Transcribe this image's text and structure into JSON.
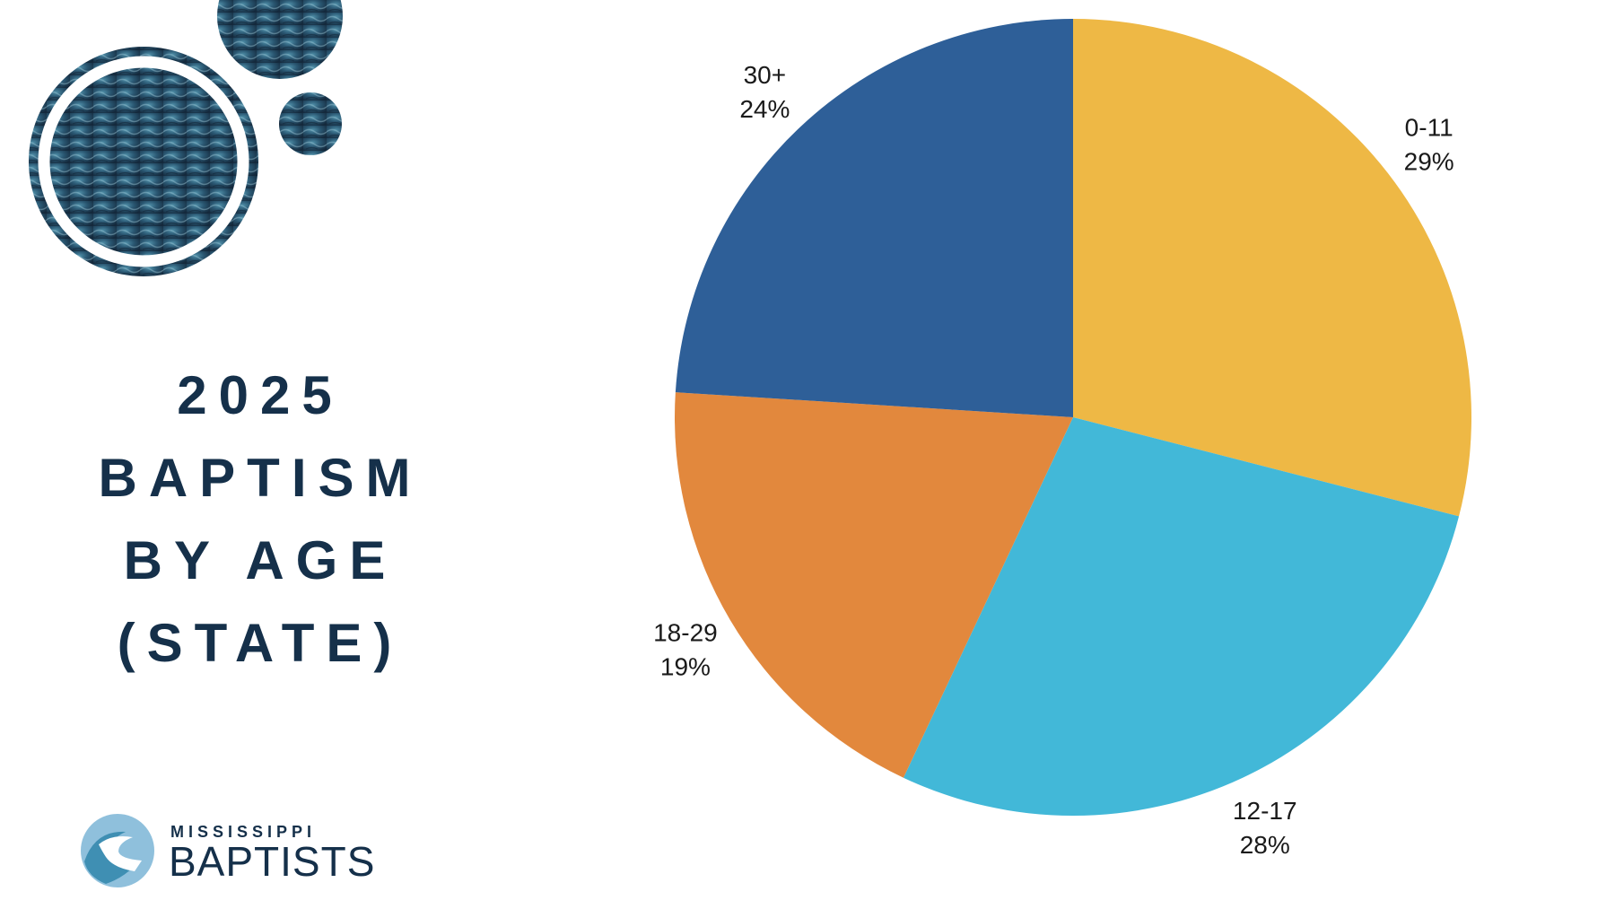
{
  "title_lines": [
    "2025",
    "BAPTISM",
    "BY AGE",
    "(STATE)"
  ],
  "logo": {
    "small_text": "MISSISSIPPI",
    "big_text": "BAPTISTS"
  },
  "colors": {
    "title": "#15304a",
    "slice_0_11": "#eeb845",
    "slice_12_17": "#42b8d8",
    "slice_18_29": "#e2883d",
    "slice_30_plus": "#2e5f98",
    "water_dark": "#1c3a52",
    "water_light": "#4f8fa8"
  },
  "chart_data": {
    "type": "pie",
    "title": "2025 BAPTISM BY AGE (STATE)",
    "slices": [
      {
        "name": "0-11",
        "value": 29,
        "label": "29%",
        "color": "#eeb845"
      },
      {
        "name": "12-17",
        "value": 28,
        "label": "28%",
        "color": "#42b8d8"
      },
      {
        "name": "18-29",
        "value": 19,
        "label": "19%",
        "color": "#e2883d"
      },
      {
        "name": "30+",
        "value": 24,
        "label": "24%",
        "color": "#2e5f98"
      }
    ],
    "start": "12 o'clock",
    "direction": "clockwise",
    "legend": "none"
  }
}
